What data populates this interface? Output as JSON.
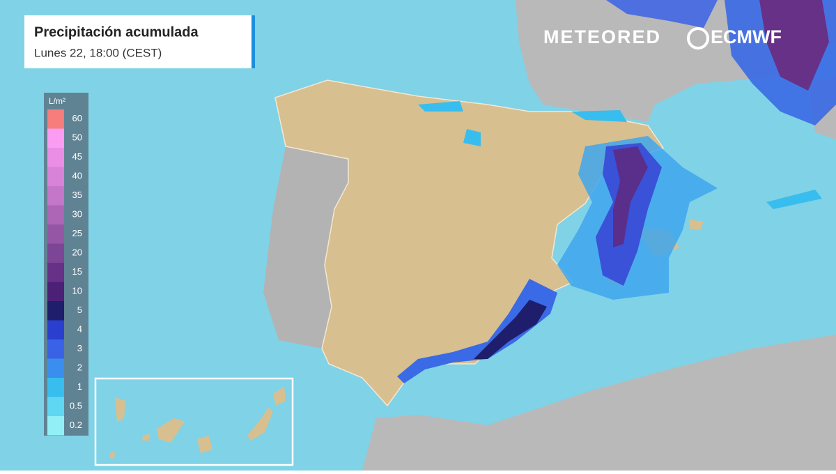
{
  "header": {
    "title": "Precipitación acumulada",
    "subtitle": "Lunes 22, 18:00 (CEST)"
  },
  "brand": {
    "name": "METEORED",
    "model": "ECMWF"
  },
  "legend": {
    "unit": "L/m²",
    "items": [
      {
        "label": "60",
        "color": "#f77c7c"
      },
      {
        "label": "50",
        "color": "#fa9cf2"
      },
      {
        "label": "45",
        "color": "#ea8de4"
      },
      {
        "label": "40",
        "color": "#d883d8"
      },
      {
        "label": "35",
        "color": "#c476c8"
      },
      {
        "label": "30",
        "color": "#ad66b6"
      },
      {
        "label": "25",
        "color": "#9556a6"
      },
      {
        "label": "20",
        "color": "#7d4596"
      },
      {
        "label": "15",
        "color": "#663186"
      },
      {
        "label": "10",
        "color": "#4b2076"
      },
      {
        "label": "5",
        "color": "#1e1e6c"
      },
      {
        "label": "4",
        "color": "#2b3fcf"
      },
      {
        "label": "3",
        "color": "#3a62e6"
      },
      {
        "label": "2",
        "color": "#3a8eee"
      },
      {
        "label": "1",
        "color": "#38bdef"
      },
      {
        "label": "0.5",
        "color": "#5fd7f3"
      },
      {
        "label": "0.2",
        "color": "#92eff5"
      }
    ]
  }
}
